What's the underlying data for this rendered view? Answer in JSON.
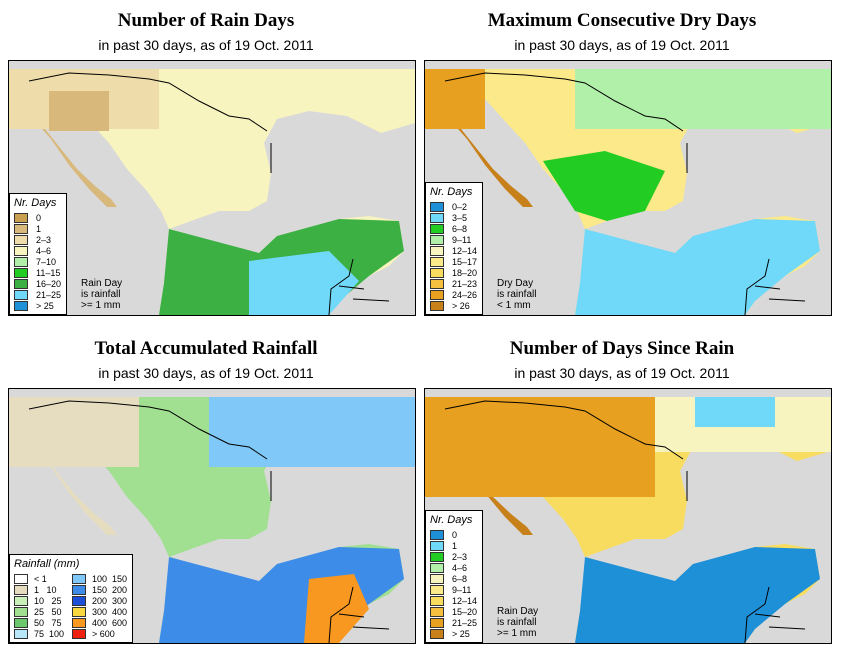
{
  "panels": [
    {
      "title": "Number of Rain Days",
      "subtitle": "in past 30 days, as of  19 Oct. 2011",
      "legend_title": "Nr. Days",
      "legend": [
        {
          "label": "0",
          "color": "#c8a050"
        },
        {
          "label": "1",
          "color": "#d9b87c"
        },
        {
          "label": "2–3",
          "color": "#eedcaa"
        },
        {
          "label": "4–6",
          "color": "#f8f4c0"
        },
        {
          "label": "7–10",
          "color": "#b0f0a8"
        },
        {
          "label": "11–15",
          "color": "#22cc22"
        },
        {
          "label": "16–20",
          "color": "#3cb043"
        },
        {
          "label": "21–25",
          "color": "#70d8f8"
        },
        {
          "label": "> 25",
          "color": "#1e90d8"
        }
      ],
      "note": [
        "Rain Day",
        "is rainfall",
        ">= 1 mm"
      ]
    },
    {
      "title": "Maximum Consecutive Dry Days",
      "subtitle": "in past 30 days, as of  19 Oct. 2011",
      "legend_title": "Nr. Days",
      "legend": [
        {
          "label": "0–2",
          "color": "#1e90d8"
        },
        {
          "label": "3–5",
          "color": "#70d8f8"
        },
        {
          "label": "6–8",
          "color": "#22cc22"
        },
        {
          "label": "9–11",
          "color": "#b0f0a8"
        },
        {
          "label": "12–14",
          "color": "#f8f4c0"
        },
        {
          "label": "15–17",
          "color": "#fbe98a"
        },
        {
          "label": "18–20",
          "color": "#f8dc60"
        },
        {
          "label": "21–23",
          "color": "#f5c040"
        },
        {
          "label": "24–26",
          "color": "#e8a020"
        },
        {
          "label": "> 26",
          "color": "#c8801a"
        }
      ],
      "note": [
        "Dry Day",
        "is rainfall",
        "< 1 mm"
      ]
    },
    {
      "title": "Total Accumulated Rainfall",
      "subtitle": "in past 30 days, as of  19 Oct. 2011",
      "legend_title": "Rainfall (mm)",
      "legend_left": [
        {
          "label": "< 1",
          "color": "#ffffff"
        },
        {
          "label": "1   10",
          "color": "#e6dcc0"
        },
        {
          "label": "10   25",
          "color": "#c8f0b8"
        },
        {
          "label": "25   50",
          "color": "#a0e090"
        },
        {
          "label": "50   75",
          "color": "#6cc86c"
        },
        {
          "label": "75  100",
          "color": "#b8e8f8"
        }
      ],
      "legend_right": [
        {
          "label": "100  150",
          "color": "#80c8f8"
        },
        {
          "label": "150  200",
          "color": "#3c8ce8"
        },
        {
          "label": "200  300",
          "color": "#1c4ed8"
        },
        {
          "label": "300  400",
          "color": "#f8d840"
        },
        {
          "label": "400  600",
          "color": "#f89820"
        },
        {
          "label": "> 600",
          "color": "#f02010"
        }
      ]
    },
    {
      "title": "Number of Days Since Rain",
      "subtitle": "in past 30 days, as of  19 Oct. 2011",
      "legend_title": "Nr. Days",
      "legend": [
        {
          "label": "0",
          "color": "#1e90d8"
        },
        {
          "label": "1",
          "color": "#70d8f8"
        },
        {
          "label": "2–3",
          "color": "#22cc22"
        },
        {
          "label": "4–6",
          "color": "#b0f0a8"
        },
        {
          "label": "6–8",
          "color": "#f8f4c0"
        },
        {
          "label": "9–11",
          "color": "#fbe98a"
        },
        {
          "label": "12–14",
          "color": "#f8dc60"
        },
        {
          "label": "15–20",
          "color": "#f5c040"
        },
        {
          "label": "21–25",
          "color": "#e8a020"
        },
        {
          "label": "> 25",
          "color": "#c8801a"
        }
      ],
      "note": [
        "Rain Day",
        "is rainfall",
        ">= 1 mm"
      ]
    }
  ]
}
